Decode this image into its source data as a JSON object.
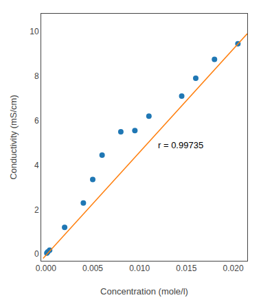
{
  "chart_data": {
    "type": "scatter",
    "xlabel": "Concentration (mole/l)",
    "ylabel": "Conductivity (mS/cm)",
    "series": [
      {
        "type": "scatter",
        "x": [
          0.0001,
          0.0002,
          0.0004,
          0.002,
          0.004,
          0.005,
          0.006,
          0.008,
          0.0095,
          0.011,
          0.0145,
          0.016,
          0.018,
          0.0205
        ],
        "values": [
          0.05,
          0.1,
          0.18,
          1.2,
          2.3,
          3.35,
          4.45,
          5.5,
          5.55,
          6.2,
          7.1,
          7.9,
          8.75,
          9.45
        ]
      },
      {
        "type": "line",
        "x": [
          -0.0003,
          0.0215
        ],
        "values": [
          -0.1889,
          9.9045
        ]
      }
    ],
    "annotations": [
      {
        "text": "r = 0.99735",
        "x": 0.0118,
        "y": 4.6
      }
    ],
    "xlim": [
      -0.0005,
      0.0215
    ],
    "ylim": [
      -0.3,
      10.8
    ],
    "xticks": [
      {
        "value": 0,
        "label": "0.000"
      },
      0.005,
      {
        "value": 0.01,
        "label": "0.010"
      },
      0.015,
      {
        "value": 0.02,
        "label": "0.020"
      }
    ],
    "yticks": [
      0,
      2,
      4,
      6,
      8,
      10
    ],
    "grid": false
  }
}
